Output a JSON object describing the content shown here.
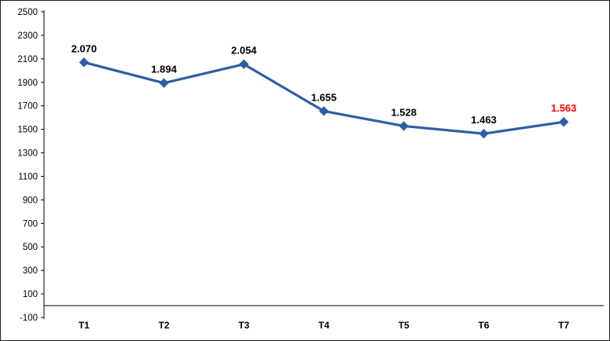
{
  "chart_data": {
    "type": "line",
    "categories": [
      "T1",
      "T2",
      "T3",
      "T4",
      "T5",
      "T6",
      "T7"
    ],
    "values": [
      2070,
      1894,
      2054,
      1655,
      1528,
      1463,
      1563
    ],
    "point_labels": [
      "2.070",
      "1.894",
      "2.054",
      "1.655",
      "1.528",
      "1.463",
      "1.563"
    ],
    "point_label_colors": [
      "#000000",
      "#000000",
      "#000000",
      "#000000",
      "#000000",
      "#000000",
      "#FF0000"
    ],
    "ylim": [
      -100,
      2500
    ],
    "ytick_step": 200,
    "ytick_labels": [
      "-100",
      "100",
      "300",
      "500",
      "700",
      "900",
      "1100",
      "1300",
      "1500",
      "1700",
      "1900",
      "2100",
      "2300",
      "2500"
    ],
    "x_axis_cross_value": 0,
    "grid": false,
    "legend": null,
    "line_color": "#2E5FA3",
    "marker_shape": "diamond",
    "axis_color": "#000000",
    "tick_label_color": "#000000",
    "category_label_color": "#000000"
  }
}
